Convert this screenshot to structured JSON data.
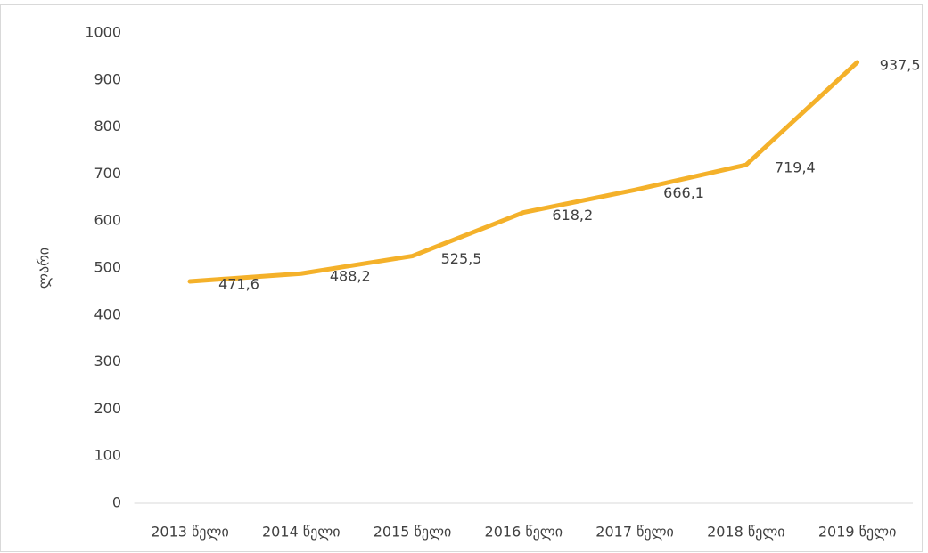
{
  "chart_data": {
    "type": "line",
    "y_label": "ლარი",
    "categories": [
      "2013 წელი",
      "2014 წელი",
      "2015 წელი",
      "2016 წელი",
      "2017 წელი",
      "2018 წელი",
      "2019 წელი"
    ],
    "series": [
      {
        "name": "ლარი",
        "color": "#f4b12a",
        "values": [
          471.6,
          488.2,
          525.5,
          618.2,
          666.1,
          719.4,
          937.5
        ],
        "value_labels": [
          "471,6",
          "488,2",
          "525,5",
          "618,2",
          "666,1",
          "719,4",
          "937,5"
        ]
      }
    ],
    "ylim": [
      0,
      1000
    ],
    "yticks": [
      0,
      100,
      200,
      300,
      400,
      500,
      600,
      700,
      800,
      900,
      1000
    ],
    "grid": false,
    "legend": false
  }
}
